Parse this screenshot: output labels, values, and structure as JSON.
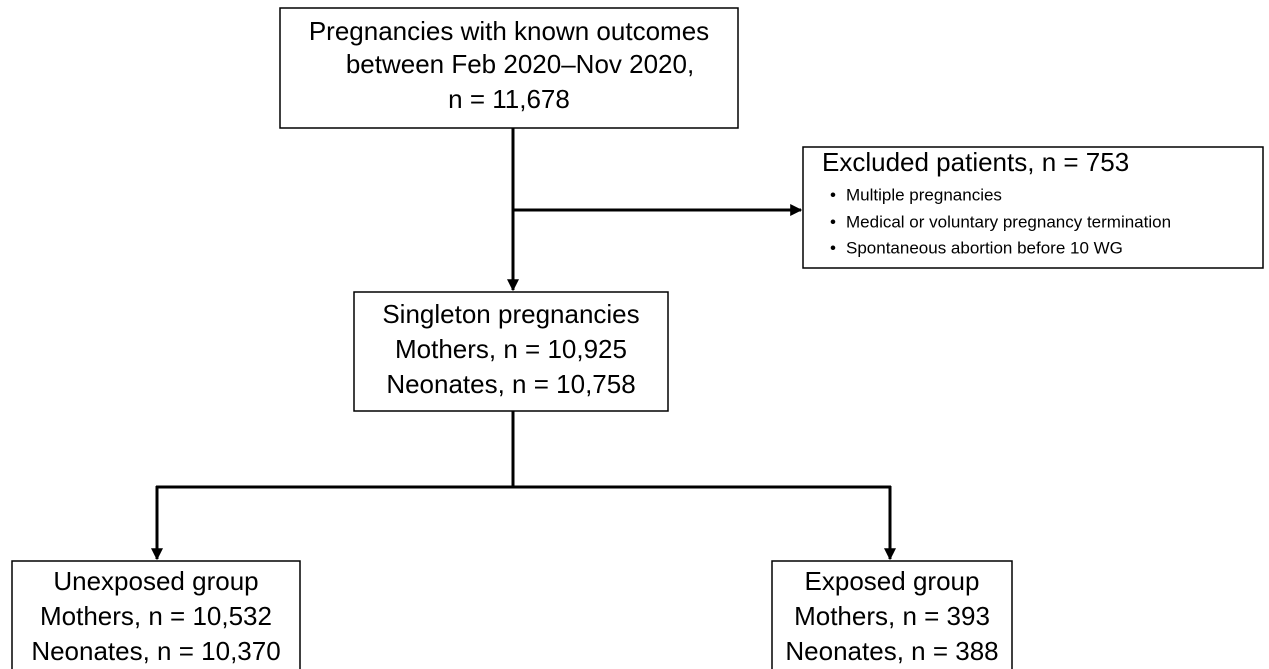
{
  "nodes": [
    {
      "lines": [
        "Pregnancies with known outcomes",
        "between Feb 2020–Nov 2020,",
        "n = 11,678"
      ]
    },
    {
      "lines": [
        "Singleton pregnancies",
        "Mothers, n = 10,925",
        "Neonates, n = 10,758"
      ]
    },
    {
      "lines": [
        "Unexposed group",
        "Mothers, n = 10,532",
        "Neonates, n = 10,370"
      ]
    },
    {
      "lines": [
        "Exposed group",
        "Mothers, n = 393",
        "Neonates, n = 388"
      ]
    }
  ],
  "excluded": {
    "title": "Excluded patients, n = 753",
    "items": [
      "Multiple pregnancies",
      "Medical or voluntary pregnancy termination",
      "Spontaneous abortion before 10 WG"
    ]
  }
}
